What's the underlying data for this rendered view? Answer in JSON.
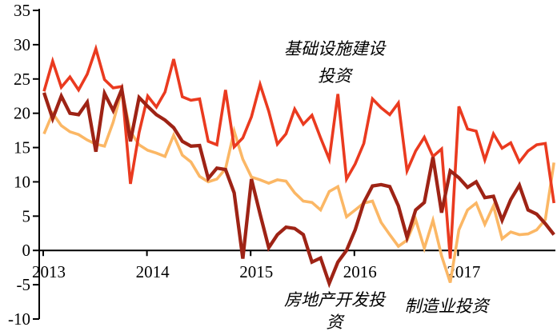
{
  "chart_data": {
    "type": "line",
    "title": "",
    "x_unit": "month",
    "x_start": "2013-01",
    "x_tick_labels": [
      "2013",
      "2014",
      "2015",
      "2016",
      "2017"
    ],
    "ylim": [
      -10,
      35
    ],
    "y_ticks": [
      35,
      30,
      25,
      20,
      15,
      10,
      5,
      0,
      -5,
      -10
    ],
    "y_tick_step": 5,
    "grid": false,
    "axis_color": "#000000",
    "legend_position": "none",
    "series": [
      {
        "name": "制造业投资",
        "color": "#fbb765",
        "stroke_width": 3.6,
        "values": [
          17.0,
          20.0,
          18.2,
          17.3,
          16.9,
          16.1,
          15.5,
          15.2,
          18.7,
          23.3,
          17.3,
          15.4,
          14.6,
          14.2,
          13.7,
          16.8,
          13.9,
          12.9,
          10.8,
          10.0,
          10.4,
          11.9,
          17.4,
          13.3,
          10.7,
          10.3,
          9.8,
          10.3,
          10.1,
          8.4,
          7.2,
          7.0,
          5.9,
          8.6,
          9.3,
          4.9,
          5.9,
          6.9,
          7.2,
          4.1,
          2.3,
          0.6,
          1.5,
          4.5,
          0.3,
          4.4,
          -0.8,
          -4.7,
          3.0,
          5.9,
          6.9,
          3.8,
          6.5,
          1.7,
          2.7,
          2.3,
          2.4,
          3.0,
          4.5,
          12.8
        ]
      },
      {
        "name": "基础设施建设投资",
        "color": "#ea3a1f",
        "stroke_width": 3.6,
        "values": [
          23.2,
          27.6,
          23.8,
          25.3,
          23.4,
          25.7,
          29.4,
          24.9,
          23.7,
          23.9,
          9.7,
          17.2,
          22.5,
          20.9,
          23.1,
          27.9,
          22.4,
          21.9,
          22.1,
          15.9,
          15.4,
          23.4,
          15.1,
          16.4,
          19.5,
          24.2,
          20.3,
          15.5,
          17.0,
          20.6,
          18.4,
          19.7,
          16.4,
          13.3,
          22.8,
          10.4,
          12.6,
          15.6,
          22.1,
          20.8,
          19.8,
          21.5,
          11.6,
          14.5,
          16.5,
          13.7,
          14.8,
          -1.2,
          21.0,
          17.7,
          17.4,
          13.2,
          17.0,
          14.9,
          15.7,
          12.9,
          14.5,
          15.4,
          15.6,
          6.9
        ]
      },
      {
        "name": "房地产开发投资",
        "color": "#9e2315",
        "stroke_width": 4.3,
        "values": [
          23.0,
          19.2,
          22.5,
          20.0,
          19.8,
          21.6,
          14.4,
          22.9,
          20.4,
          23.5,
          15.9,
          22.3,
          21.0,
          19.8,
          19.0,
          17.9,
          15.9,
          15.2,
          15.3,
          10.5,
          12.0,
          11.8,
          8.4,
          -1.2,
          10.4,
          5.3,
          0.4,
          2.3,
          3.4,
          3.2,
          2.3,
          -1.7,
          -1.1,
          -4.8,
          -1.7,
          0.0,
          3.0,
          7.0,
          9.4,
          9.6,
          9.3,
          6.5,
          1.9,
          5.9,
          7.0,
          13.6,
          5.5,
          11.6,
          10.6,
          9.2,
          10.0,
          7.7,
          7.9,
          4.4,
          7.4,
          9.5,
          5.9,
          5.3,
          3.9,
          2.3
        ]
      }
    ],
    "annotations": [
      {
        "text": "基础设施建设\n投资",
        "series": "基础设施建设投资",
        "color": "#000000"
      },
      {
        "text": "房地产开发投\n资",
        "series": "房地产开发投资",
        "color": "#000000"
      },
      {
        "text": "制造业投资",
        "series": "制造业投资",
        "color": "#000000"
      }
    ]
  }
}
